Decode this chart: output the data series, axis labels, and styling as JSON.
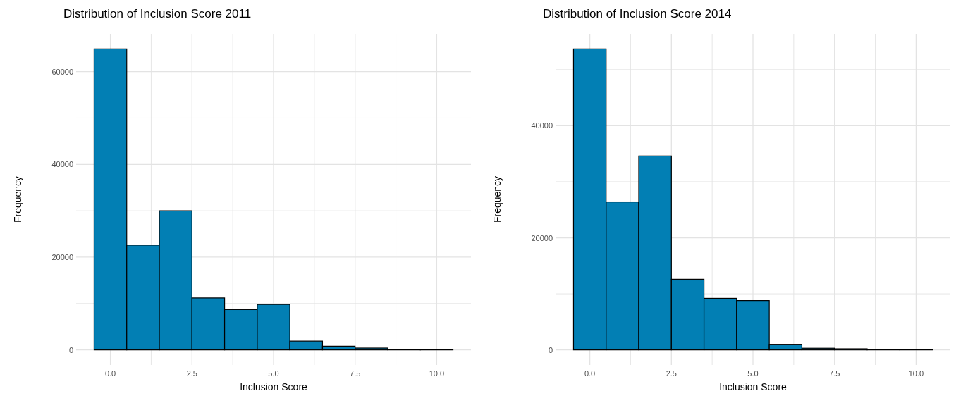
{
  "chart_data": [
    {
      "type": "histogram",
      "title": "Distribution of Inclusion Score 2011",
      "xlabel": "Inclusion Score",
      "ylabel": "Frequency",
      "bins": [
        -0.5,
        0.5,
        1.5,
        2.5,
        3.5,
        4.5,
        5.5,
        6.5,
        7.5,
        8.5,
        9.5,
        10.5
      ],
      "values": [
        64900,
        22600,
        30000,
        11200,
        8700,
        9800,
        1900,
        800,
        400,
        100,
        100
      ],
      "color": "#027fb4",
      "xlim": [
        -1.05,
        11.05
      ],
      "ylim": [
        -3245,
        68145
      ],
      "xticks": [
        {
          "value": 0,
          "label": "0.0"
        },
        {
          "value": 1.25,
          "label": null
        },
        {
          "value": 2.5,
          "label": "2.5"
        },
        {
          "value": 3.75,
          "label": null
        },
        {
          "value": 5,
          "label": "5.0"
        },
        {
          "value": 6.25,
          "label": null
        },
        {
          "value": 7.5,
          "label": "7.5"
        },
        {
          "value": 8.75,
          "label": null
        },
        {
          "value": 10,
          "label": "10.0"
        }
      ],
      "yticks": [
        0,
        {
          "value": 10000,
          "label": null
        },
        20000,
        {
          "value": 30000,
          "label": null
        },
        40000,
        {
          "value": 50000,
          "label": null
        },
        60000
      ],
      "grid": true
    },
    {
      "type": "histogram",
      "title": "Distribution of Inclusion Score 2014",
      "xlabel": "Inclusion Score",
      "ylabel": "Frequency",
      "bins": [
        -0.5,
        0.5,
        1.5,
        2.5,
        3.5,
        4.5,
        5.5,
        6.5,
        7.5,
        8.5,
        9.5,
        10.5
      ],
      "values": [
        53700,
        26400,
        34600,
        12600,
        9200,
        8800,
        1000,
        300,
        200,
        100,
        100
      ],
      "color": "#027fb4",
      "xlim": [
        -1.05,
        11.05
      ],
      "ylim": [
        -2685,
        56385
      ],
      "xticks": [
        {
          "value": 0,
          "label": "0.0"
        },
        {
          "value": 1.25,
          "label": null
        },
        {
          "value": 2.5,
          "label": "2.5"
        },
        {
          "value": 3.75,
          "label": null
        },
        {
          "value": 5,
          "label": "5.0"
        },
        {
          "value": 6.25,
          "label": null
        },
        {
          "value": 7.5,
          "label": "7.5"
        },
        {
          "value": 8.75,
          "label": null
        },
        {
          "value": 10,
          "label": "10.0"
        }
      ],
      "yticks": [
        0,
        {
          "value": 10000,
          "label": null
        },
        20000,
        {
          "value": 30000,
          "label": null
        },
        40000,
        {
          "value": 50000,
          "label": null
        }
      ],
      "grid": true
    }
  ]
}
